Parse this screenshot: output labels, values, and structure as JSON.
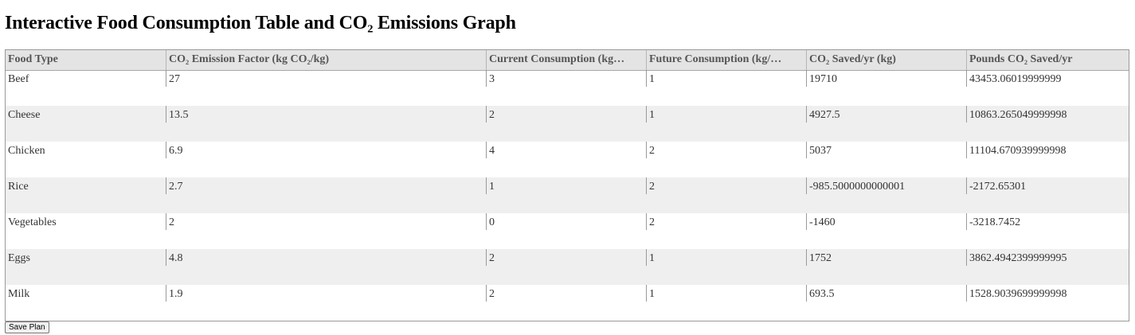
{
  "title": "Interactive Food Consumption Table and CO₂ Emissions Graph",
  "table": {
    "columns": [
      "Food Type",
      "CO₂ Emission Factor (kg CO₂/kg)",
      "Current Consumption (kg…",
      "Future Consumption (kg/…",
      "CO₂ Saved/yr (kg)",
      "Pounds CO₂ Saved/yr"
    ],
    "rows": [
      [
        "Beef",
        "27",
        "3",
        "1",
        "19710",
        "43453.06019999999"
      ],
      [
        "Cheese",
        "13.5",
        "2",
        "1",
        "4927.5",
        "10863.265049999998"
      ],
      [
        "Chicken",
        "6.9",
        "4",
        "2",
        "5037",
        "11104.670939999998"
      ],
      [
        "Rice",
        "2.7",
        "1",
        "2",
        "-985.5000000000001",
        "-2172.65301"
      ],
      [
        "Vegetables",
        "2",
        "0",
        "2",
        "-1460",
        "-3218.7452"
      ],
      [
        "Eggs",
        "4.8",
        "2",
        "1",
        "1752",
        "3862.4942399999995"
      ],
      [
        "Milk",
        "1.9",
        "2",
        "1",
        "693.5",
        "1528.9039699999998"
      ]
    ]
  },
  "save_button": "Save Plan"
}
